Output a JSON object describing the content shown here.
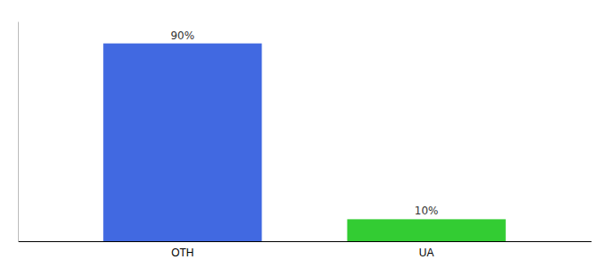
{
  "chart_data": {
    "type": "bar",
    "categories": [
      "OTH",
      "UA"
    ],
    "values": [
      90,
      10
    ],
    "value_labels": [
      "90%",
      "10%"
    ],
    "colors": [
      "#4169e1",
      "#33cc33"
    ],
    "ylim": [
      0,
      100
    ],
    "data_labels": true,
    "tick_labels": "x"
  }
}
